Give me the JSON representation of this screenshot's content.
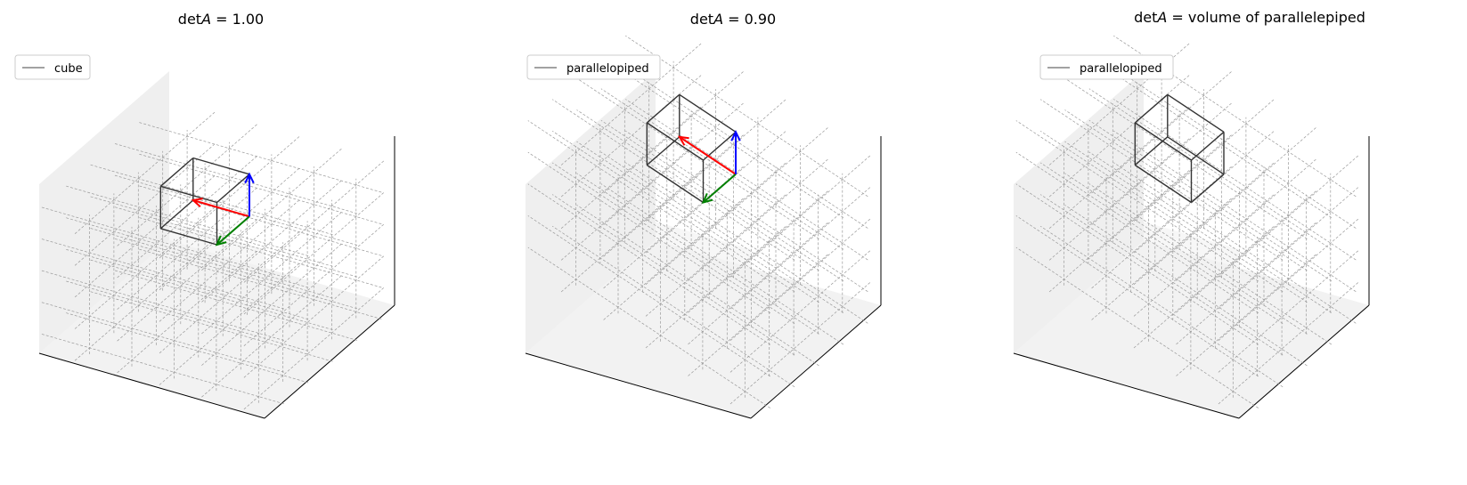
{
  "panels": [
    {
      "title": {
        "prefix": "det",
        "italic": "A",
        "suffix": " = 1.00"
      },
      "legend": "cube",
      "shear": 0.0,
      "vectors_visible": true,
      "colors": {
        "e1": "#ff0000",
        "e2": "#008000",
        "e3": "#0000ff"
      }
    },
    {
      "title": {
        "prefix": "det",
        "italic": "A",
        "suffix": " = 0.90"
      },
      "legend": "parallelopiped",
      "shear": 1.0,
      "vectors_visible": true,
      "colors": {
        "e1": "#ff0000",
        "e2": "#008000",
        "e3": "#0000ff"
      }
    },
    {
      "title": {
        "prefix": "det",
        "italic": "A",
        "suffix": " = volume of parallelepiped"
      },
      "legend": "parallelopiped",
      "shear": 1.0,
      "vectors_visible": false,
      "colors": {
        "e1": "#ff0000",
        "e2": "#008000",
        "e3": "#0000ff"
      }
    }
  ]
}
